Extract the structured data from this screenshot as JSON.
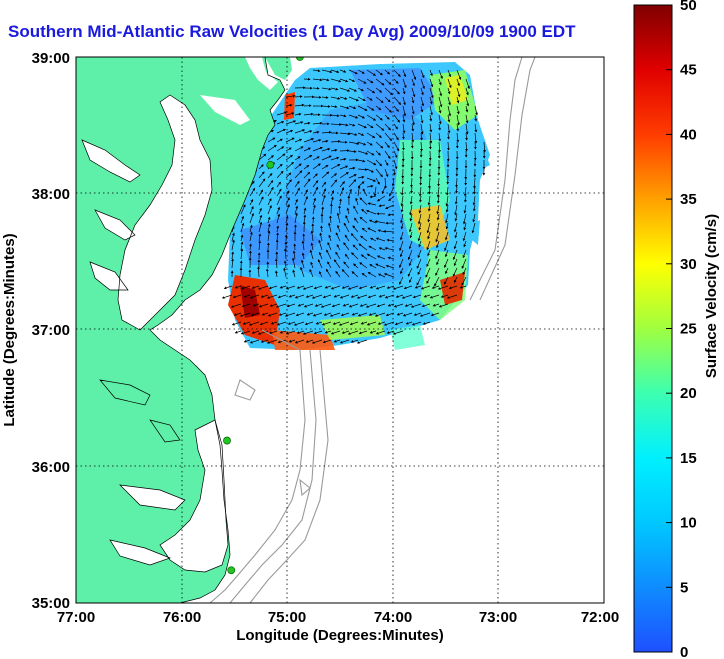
{
  "title": "Southern Mid-Atlantic Raw Velocities (1 Day Avg) 2009/10/09 1900 EDT",
  "xlabel": "Longitude (Degrees:Minutes)",
  "ylabel": "Latitude (Degrees:Minutes)",
  "colorbar_label": "Surface Velocity (cm/s)",
  "x_ticks": [
    "77:00",
    "76:00",
    "75:00",
    "74:00",
    "73:00",
    "72:00"
  ],
  "y_ticks": [
    "39:00",
    "38:00",
    "37:00",
    "36:00",
    "35:00"
  ],
  "colorbar_ticks": [
    "0",
    "5",
    "10",
    "15",
    "20",
    "25",
    "30",
    "35",
    "40",
    "45",
    "50"
  ],
  "colors": {
    "land": "#5ef0a8",
    "title": "#1a1adf",
    "station": "#22c822",
    "bathymetry": "#9a9a9a",
    "grid": "#000000"
  },
  "chart_data": {
    "type": "heatmap",
    "title": "Southern Mid-Atlantic Raw Velocities (1 Day Avg) 2009/10/09 1900 EDT",
    "xlabel": "Longitude (Degrees:Minutes)",
    "ylabel": "Latitude (Degrees:Minutes)",
    "xlim": [
      -77,
      -72
    ],
    "ylim": [
      35,
      39
    ],
    "colorbar_range": [
      0,
      50
    ],
    "colorbar_units": "cm/s",
    "grid": true,
    "stations": [
      {
        "lon": -74.88,
        "lat": 39.0
      },
      {
        "lon": -75.16,
        "lat": 38.21
      },
      {
        "lon": -75.57,
        "lat": 36.19
      },
      {
        "lon": -75.53,
        "lat": 35.24
      }
    ]
  }
}
